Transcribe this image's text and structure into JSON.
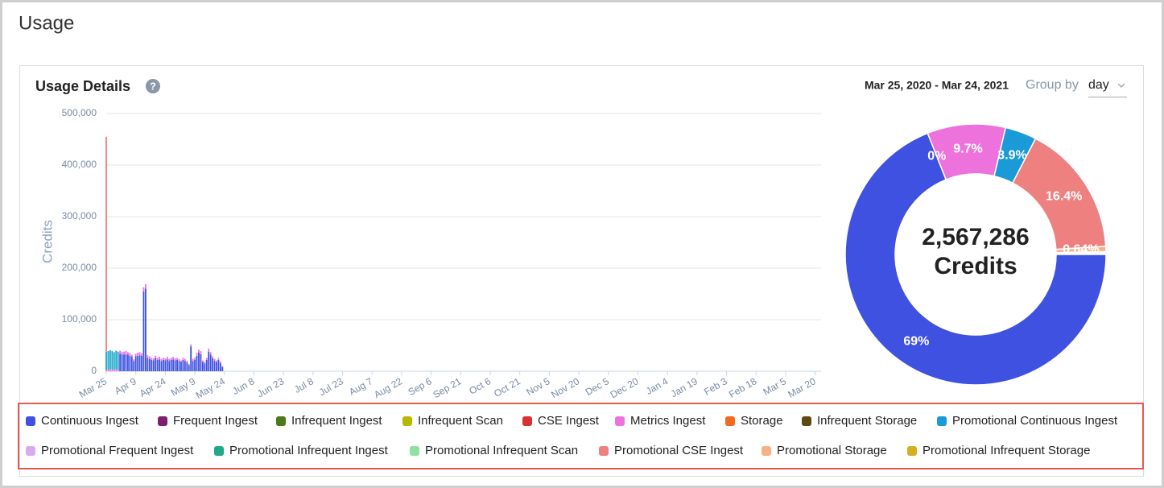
{
  "page": {
    "title": "Usage"
  },
  "panel": {
    "title": "Usage Details",
    "help_icon": "?",
    "date_range": "Mar 25, 2020 - Mar 24, 2021",
    "group_by_label": "Group by",
    "group_by_value": "day"
  },
  "chart_data": [
    {
      "type": "bar",
      "stacked": true,
      "y_label": "Credits",
      "x": [
        0,
        1,
        2,
        3,
        4,
        5,
        6,
        7,
        8,
        9,
        10,
        11,
        12,
        13,
        14,
        15,
        16,
        17,
        18,
        19,
        20,
        21,
        22,
        23,
        24,
        25,
        26,
        27,
        28,
        29,
        30,
        31,
        32,
        33,
        34,
        35,
        36,
        37,
        38,
        39,
        40,
        41,
        42,
        43,
        44,
        45,
        46,
        47,
        48,
        49,
        50,
        51,
        52,
        53,
        54,
        55,
        56,
        57,
        58,
        59
      ],
      "xlim": [
        0,
        363
      ],
      "xticks": [
        {
          "value": 0,
          "label": "Mar 25"
        },
        {
          "value": 15,
          "label": "Apr 9"
        },
        {
          "value": 30,
          "label": "Apr 24"
        },
        {
          "value": 45,
          "label": "May 9"
        },
        {
          "value": 60,
          "label": "May 24"
        },
        {
          "value": 75,
          "label": "Jun 8"
        },
        {
          "value": 90,
          "label": "Jun 23"
        },
        {
          "value": 105,
          "label": "Jul 8"
        },
        {
          "value": 120,
          "label": "Jul 23"
        },
        {
          "value": 135,
          "label": "Aug 7"
        },
        {
          "value": 150,
          "label": "Aug 22"
        },
        {
          "value": 165,
          "label": "Sep 6"
        },
        {
          "value": 180,
          "label": "Sep 21"
        },
        {
          "value": 195,
          "label": "Oct 6"
        },
        {
          "value": 210,
          "label": "Oct 21"
        },
        {
          "value": 225,
          "label": "Nov 5"
        },
        {
          "value": 240,
          "label": "Nov 20"
        },
        {
          "value": 255,
          "label": "Dec 5"
        },
        {
          "value": 270,
          "label": "Dec 20"
        },
        {
          "value": 285,
          "label": "Jan 4"
        },
        {
          "value": 300,
          "label": "Jan 19"
        },
        {
          "value": 315,
          "label": "Feb 3"
        },
        {
          "value": 330,
          "label": "Feb 18"
        },
        {
          "value": 345,
          "label": "Mar 5"
        },
        {
          "value": 360,
          "label": "Mar 20"
        }
      ],
      "ylim": [
        0,
        500000
      ],
      "yticks": [
        0,
        {
          "value": 100000,
          "label": "100,000"
        },
        {
          "value": 200000,
          "label": "200,000"
        },
        {
          "value": 300000,
          "label": "300,000"
        },
        {
          "value": 400000,
          "label": "400,000"
        },
        {
          "value": 500000,
          "label": "500,000"
        }
      ],
      "grid": true,
      "series": [
        {
          "color": "#3f51e0",
          "values": [
            null,
            null,
            null,
            null,
            null,
            null,
            null,
            34000,
            33000,
            32000,
            33000,
            32000,
            30000,
            28000,
            20000,
            29000,
            30000,
            31000,
            30000,
            155000,
            160000,
            26000,
            24000,
            22000,
            21000,
            25000,
            22000,
            23000,
            20000,
            22000,
            21000,
            23000,
            20000,
            22000,
            23000,
            21000,
            22000,
            20000,
            18000,
            22000,
            20000,
            17000,
            12000,
            48000,
            20000,
            22000,
            30000,
            36000,
            33000,
            18000,
            15000,
            22000,
            38000,
            32000,
            25000,
            20000,
            18000,
            22000,
            16000,
            8000
          ]
        },
        {
          "color": "#ee72dc",
          "values": [
            3000,
            3000,
            4000,
            4000,
            3000,
            4000,
            3000,
            6000,
            5000,
            6000,
            6000,
            5000,
            5000,
            4000,
            3000,
            5000,
            6000,
            6000,
            5000,
            8000,
            9000,
            5000,
            5000,
            4000,
            4000,
            5000,
            4000,
            5000,
            4000,
            4000,
            4000,
            5000,
            4000,
            4000,
            5000,
            4000,
            4000,
            4000,
            3000,
            4000,
            4000,
            3000,
            2000,
            4000,
            4000,
            4000,
            5000,
            6000,
            6000,
            3000,
            3000,
            4000,
            6000,
            5000,
            4000,
            4000,
            3000,
            4000,
            3000,
            2000
          ]
        },
        {
          "color": "#1aa8c8",
          "values": [
            35000,
            36000,
            37000,
            35000,
            34000,
            36000,
            35000,
            null,
            null,
            null,
            null,
            null,
            null,
            null,
            null,
            null,
            null,
            null,
            null,
            null,
            null,
            null,
            null,
            null,
            null,
            null,
            null,
            null,
            null,
            null,
            null,
            null,
            null,
            null,
            null,
            null,
            null,
            null,
            null,
            null,
            null,
            null,
            null,
            null,
            null,
            null,
            null,
            null,
            null,
            null,
            null,
            null,
            null,
            null,
            null,
            null,
            null,
            null,
            null,
            null
          ]
        },
        {
          "color": "#ee8080",
          "values": [
            417000,
            null,
            null,
            null,
            null,
            null,
            null,
            null,
            null,
            null,
            null,
            null,
            null,
            null,
            null,
            null,
            null,
            null,
            null,
            null,
            null,
            null,
            null,
            null,
            null,
            null,
            null,
            null,
            null,
            null,
            null,
            null,
            null,
            null,
            null,
            null,
            null,
            null,
            null,
            null,
            null,
            null,
            null,
            null,
            null,
            null,
            null,
            null,
            null,
            null,
            null,
            null,
            null,
            null,
            null,
            null,
            null,
            null,
            null,
            null
          ]
        }
      ]
    },
    {
      "type": "pie",
      "center_text": [
        "2,567,286",
        "Credits"
      ],
      "categories": [
        "Continuous Ingest",
        "Frequent Ingest",
        "Infrequent Ingest",
        "Infrequent Scan",
        "CSE Ingest",
        "Metrics Ingest",
        "Storage",
        "Infrequent Storage",
        "Promotional Continuous Ingest",
        "Promotional Frequent Ingest",
        "Promotional Infrequent Ingest",
        "Promotional Infrequent Scan",
        "Promotional CSE Ingest",
        "Promotional Storage",
        "Promotional Infrequent Storage"
      ],
      "colors": [
        "#3f51e0",
        "#7b1f6e",
        "#4a7a1a",
        "#b8b800",
        "#d93030",
        "#ee72dc",
        "#f06a20",
        "#5e4a10",
        "#1a9ad6",
        "#d9aaf0",
        "#20a88a",
        "#90e0a0",
        "#ee8080",
        "#f8b088",
        "#d4b020"
      ],
      "values": [
        69,
        0,
        null,
        null,
        null,
        9.7,
        null,
        null,
        3.9,
        null,
        null,
        null,
        16.4,
        0.64,
        null
      ],
      "value_labels": [
        "69%",
        "0%",
        null,
        null,
        null,
        "9.7%",
        null,
        null,
        "3.9%",
        null,
        null,
        null,
        "16.4%",
        "0.64%",
        null
      ]
    }
  ]
}
